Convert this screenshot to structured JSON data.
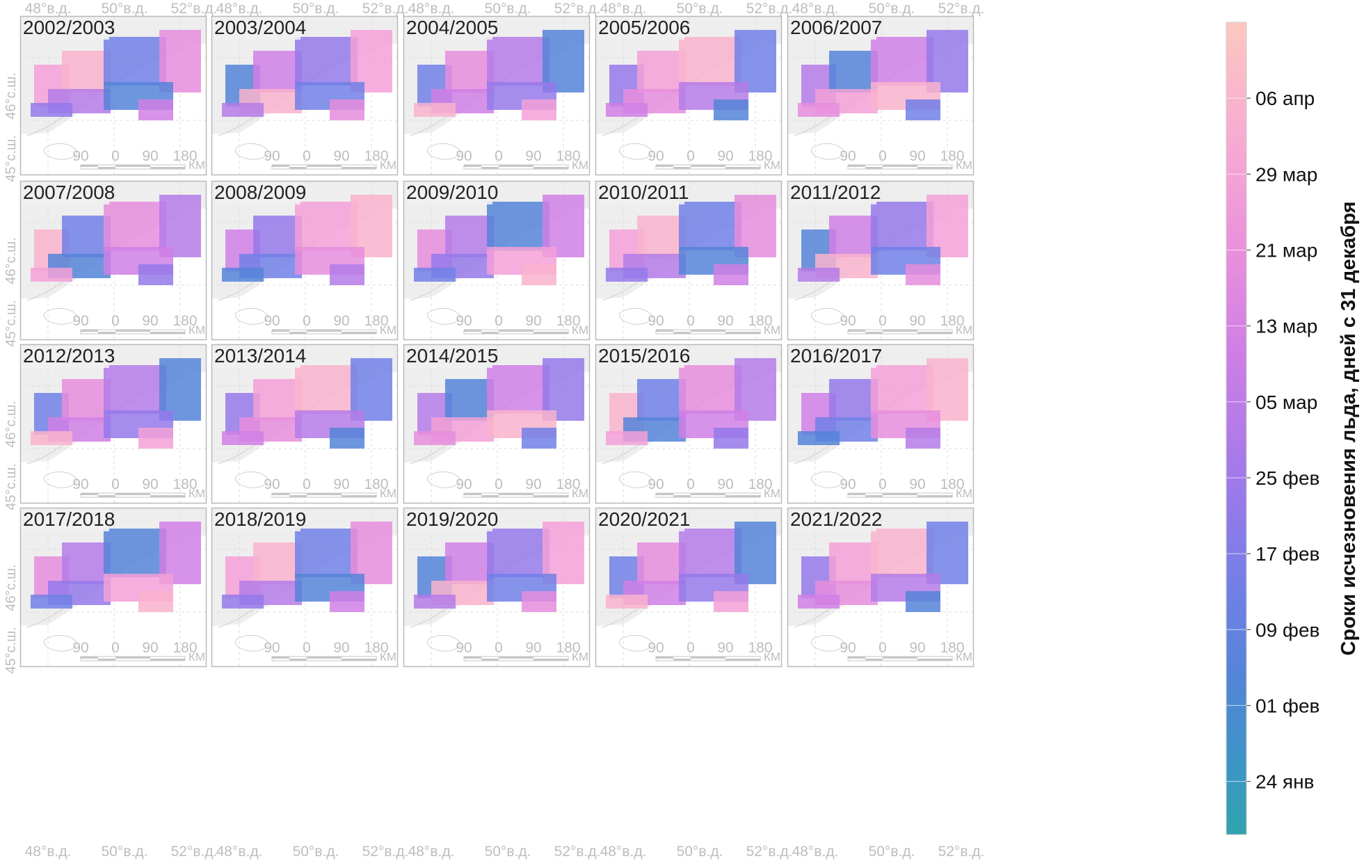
{
  "figure": {
    "panels": [
      {
        "label": "2002/2003"
      },
      {
        "label": "2003/2004"
      },
      {
        "label": "2004/2005"
      },
      {
        "label": "2005/2006"
      },
      {
        "label": "2006/2007"
      },
      {
        "label": "2007/2008"
      },
      {
        "label": "2008/2009"
      },
      {
        "label": "2009/2010"
      },
      {
        "label": "2010/2011"
      },
      {
        "label": "2011/2012"
      },
      {
        "label": "2012/2013"
      },
      {
        "label": "2013/2014"
      },
      {
        "label": "2014/2015"
      },
      {
        "label": "2015/2016"
      },
      {
        "label": "2016/2017"
      },
      {
        "label": "2017/2018"
      },
      {
        "label": "2018/2019"
      },
      {
        "label": "2019/2020"
      },
      {
        "label": "2020/2021"
      },
      {
        "label": "2021/2022"
      }
    ],
    "lon_labels": [
      "48°в.д.",
      "50°в.д.",
      "52°в.д."
    ],
    "lat_labels": [
      "46°с.ш.",
      "45°с.ш."
    ],
    "scalebar": {
      "ticks": [
        "90",
        "0",
        "90",
        "180"
      ],
      "unit": "КМ"
    },
    "colorbar": {
      "title": "Сроки исчезновения льда, дней с 31 декабря",
      "labels": [
        "06 апр",
        "29 мар",
        "21 мар",
        "13 мар",
        "05 мар",
        "25 фев",
        "17 фев",
        "09 фев",
        "01 фев",
        "24 янв"
      ],
      "colors": [
        "#fcc8bf",
        "#f9b3cd",
        "#f3a0d7",
        "#e68ddd",
        "#d07fe5",
        "#b47be8",
        "#9479ea",
        "#7180e6",
        "#5584d8",
        "#3f93c9",
        "#2fa3ad"
      ]
    },
    "palette": {
      "land": "#ffffff",
      "sea": "#eeeeee",
      "frame": "#b9b9b9",
      "text_gray": "#bdbdbd",
      "label_bg": "#f0f0f0",
      "scalebar": "#c6c6c6"
    }
  }
}
